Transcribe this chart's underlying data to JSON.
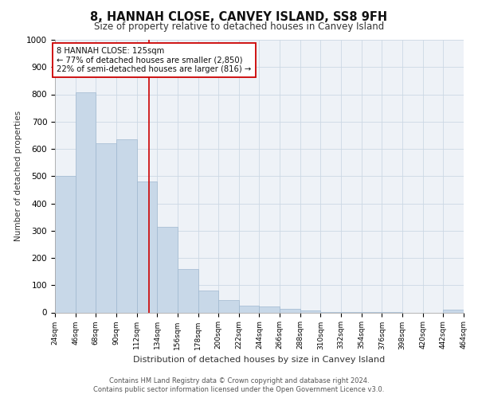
{
  "title": "8, HANNAH CLOSE, CANVEY ISLAND, SS8 9FH",
  "subtitle": "Size of property relative to detached houses in Canvey Island",
  "xlabel": "Distribution of detached houses by size in Canvey Island",
  "ylabel": "Number of detached properties",
  "bar_edges": [
    24,
    46,
    68,
    90,
    112,
    134,
    156,
    178,
    200,
    222,
    244,
    266,
    288,
    310,
    332,
    354,
    376,
    398,
    420,
    442,
    464
  ],
  "bar_heights": [
    500,
    808,
    620,
    635,
    480,
    313,
    158,
    80,
    45,
    26,
    22,
    12,
    8,
    2,
    2,
    2,
    2,
    0,
    0,
    10
  ],
  "bar_color": "#c8d8e8",
  "bar_edge_color": "#a0b8d0",
  "vline_x": 125,
  "vline_color": "#cc0000",
  "annotation_text": "8 HANNAH CLOSE: 125sqm\n← 77% of detached houses are smaller (2,850)\n22% of semi-detached houses are larger (816) →",
  "annotation_box_color": "#ffffff",
  "annotation_box_edge": "#cc0000",
  "footer_text": "Contains HM Land Registry data © Crown copyright and database right 2024.\nContains public sector information licensed under the Open Government Licence v3.0.",
  "ylim": [
    0,
    1000
  ],
  "yticks": [
    0,
    100,
    200,
    300,
    400,
    500,
    600,
    700,
    800,
    900,
    1000
  ],
  "tick_labels": [
    "24sqm",
    "46sqm",
    "68sqm",
    "90sqm",
    "112sqm",
    "134sqm",
    "156sqm",
    "178sqm",
    "200sqm",
    "222sqm",
    "244sqm",
    "266sqm",
    "288sqm",
    "310sqm",
    "332sqm",
    "354sqm",
    "376sqm",
    "398sqm",
    "420sqm",
    "442sqm",
    "464sqm"
  ],
  "bg_color": "#eef2f7",
  "grid_color": "#ccd8e4"
}
